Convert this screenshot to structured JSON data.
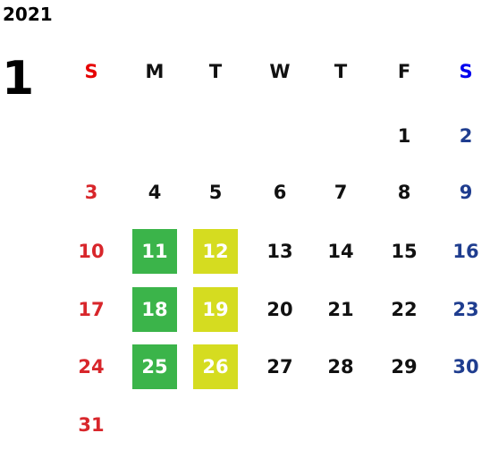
{
  "year": "2021",
  "month": "1",
  "weekdays": [
    "S",
    "M",
    "T",
    "W",
    "T",
    "F",
    "S"
  ],
  "weeks": [
    [
      null,
      null,
      null,
      null,
      null,
      "1",
      "2"
    ],
    [
      "3",
      "4",
      "5",
      "6",
      "7",
      "8",
      "9"
    ],
    [
      "10",
      {
        "text": "11",
        "fill": "#3bb44a"
      },
      {
        "text": "12",
        "fill": "#d5dc20"
      },
      "13",
      "14",
      "15",
      "16"
    ],
    [
      "17",
      {
        "text": "18",
        "fill": "#3bb44a"
      },
      {
        "text": "19",
        "fill": "#d5dc20"
      },
      "20",
      "21",
      "22",
      "23"
    ],
    [
      "24",
      {
        "text": "25",
        "fill": "#3bb44a"
      },
      {
        "text": "26",
        "fill": "#d5dc20"
      },
      "27",
      "28",
      "29",
      "30"
    ],
    [
      "31",
      null,
      null,
      null,
      null,
      null,
      null
    ]
  ]
}
